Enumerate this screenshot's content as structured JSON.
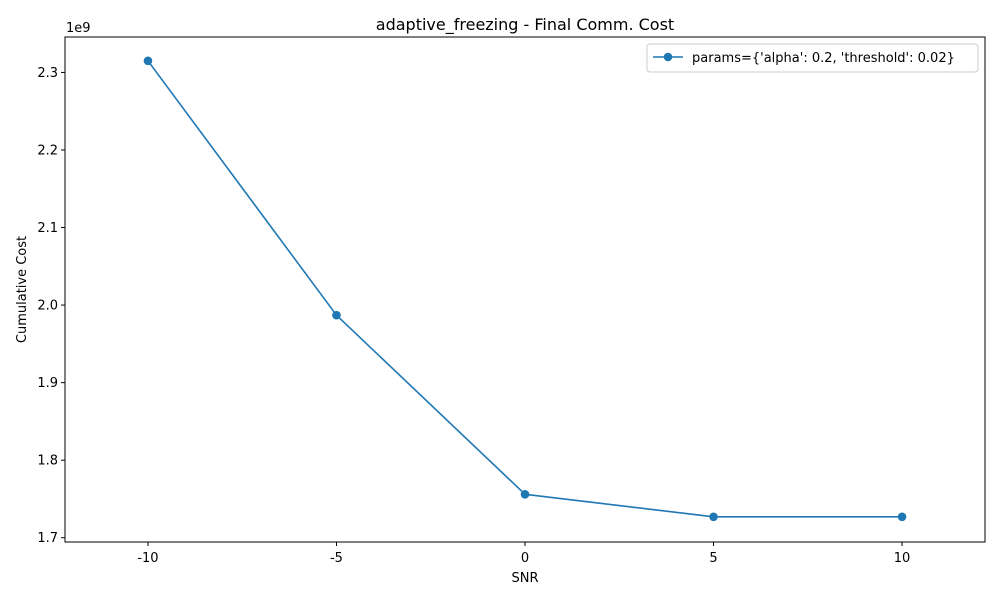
{
  "chart_data": {
    "type": "line",
    "title": "adaptive_freezing - Final Comm. Cost",
    "xlabel": "SNR",
    "ylabel": "Cumulative Cost",
    "y_offset_label": "1e9",
    "x_tick_labels": [
      "-10",
      "-5",
      "0",
      "5",
      "10"
    ],
    "x_ticks": [
      -10,
      -5,
      0,
      5,
      10
    ],
    "y_ticks": [
      1.7,
      1.8,
      1.9,
      2.0,
      2.1,
      2.2,
      2.3
    ],
    "y_tick_labels": [
      "1.7",
      "1.8",
      "1.9",
      "2.0",
      "2.1",
      "2.2",
      "2.3"
    ],
    "xlim": [
      -12.2,
      12.2
    ],
    "ylim": [
      1.6945,
      2.3457
    ],
    "legend_position": "upper right",
    "grid": false,
    "series": [
      {
        "name": "params={'alpha': 0.2, 'threshold': 0.02}",
        "color": "#1f77b4",
        "marker": "circle",
        "x": [
          -10,
          -5,
          0,
          5,
          10
        ],
        "y": [
          2.315,
          1.987,
          1.756,
          1.727,
          1.727
        ]
      }
    ]
  }
}
